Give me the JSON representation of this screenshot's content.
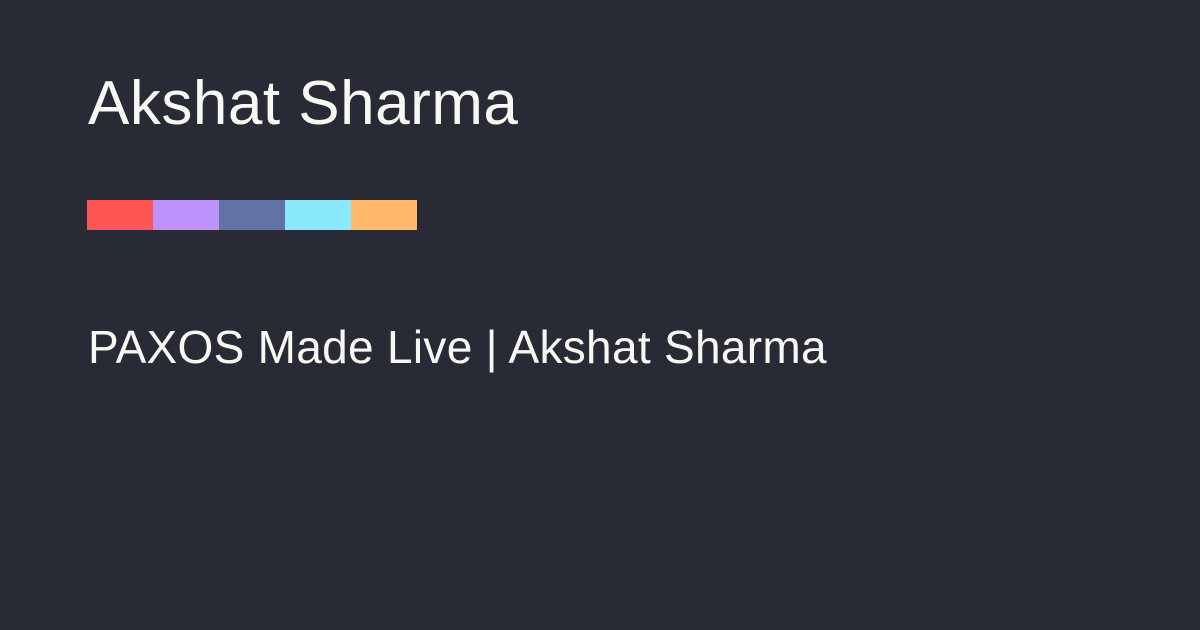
{
  "site": {
    "title": "Akshat Sharma"
  },
  "page": {
    "heading": "PAXOS Made Live | Akshat Sharma"
  },
  "theme": {
    "background": "#282a36",
    "text": "#f8f8f2",
    "palette": [
      "#ff5555",
      "#bd93f9",
      "#6272a4",
      "#8be9fd",
      "#ffb86c"
    ]
  }
}
